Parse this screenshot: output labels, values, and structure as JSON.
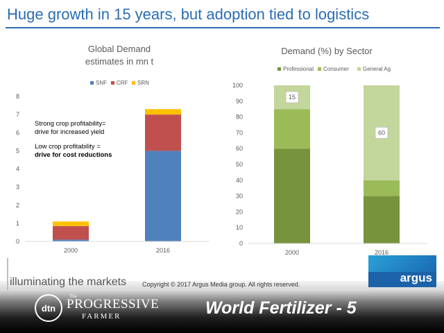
{
  "slide": {
    "title": "Huge growth in 15 years, but adoption tied to logistics",
    "tagline": "illuminating the markets",
    "copyright": "Copyright © 2017 Argus Media group. All rights reserved.",
    "brand": "argus",
    "footer_label": "World Fertilizer - 5",
    "dtn_logo": "dtn",
    "pf_the": "The",
    "pf_name": "PROGRESSIVE",
    "pf_farmer": "FARMER"
  },
  "annotations": {
    "line1": "Strong crop profitability=",
    "line2": "drive for increased yield",
    "line3": "Low crop profitability =",
    "line4": "drive for cost reductions"
  },
  "chart_data": [
    {
      "type": "bar",
      "stacked": true,
      "title": "Global Demand",
      "subtitle": "estimates in mn t",
      "categories": [
        "2000",
        "2016"
      ],
      "series": [
        {
          "name": "SNF",
          "values": [
            0.1,
            5.0
          ],
          "color": "#4f81bd"
        },
        {
          "name": "CRF",
          "values": [
            0.75,
            2.0
          ],
          "color": "#c0504d"
        },
        {
          "name": "SRN",
          "values": [
            0.25,
            0.3
          ],
          "color": "#ffc000"
        }
      ],
      "ylim": [
        0,
        8
      ],
      "yticks": [
        0,
        1,
        2,
        3,
        4,
        5,
        6,
        7,
        8
      ],
      "legend": "top",
      "grid": false
    },
    {
      "type": "bar",
      "stacked": true,
      "title": "Demand (%) by Sector",
      "categories": [
        "2000",
        "2016"
      ],
      "series": [
        {
          "name": "Professional",
          "values": [
            60,
            30
          ],
          "color": "#77933c"
        },
        {
          "name": "Consumer",
          "values": [
            25,
            10
          ],
          "color": "#9bbb59"
        },
        {
          "name": "General Ag",
          "values": [
            15,
            60
          ],
          "color": "#c3d69b",
          "labels": [
            "15",
            "60"
          ]
        }
      ],
      "ylim": [
        0,
        100
      ],
      "yticks": [
        0,
        10,
        20,
        30,
        40,
        50,
        60,
        70,
        80,
        90,
        100
      ],
      "legend": "top",
      "grid": false
    }
  ]
}
